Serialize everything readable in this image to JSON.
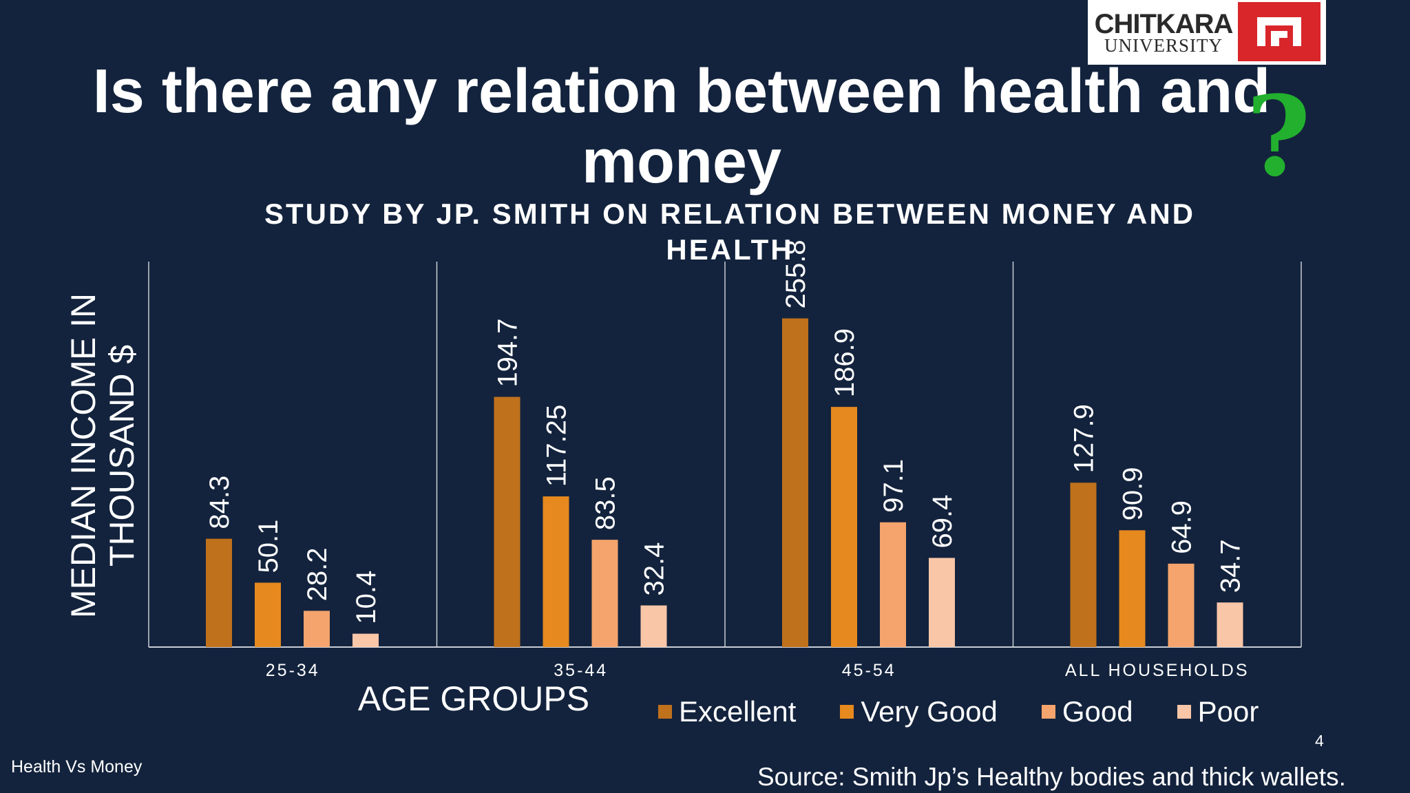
{
  "slide": {
    "title": "Is there any relation between health and money",
    "question_mark": "?",
    "footer": "Health Vs Money",
    "page_number": "4",
    "source": "Source: Smith Jp’s Healthy bodies and thick wallets."
  },
  "logo": {
    "name": "CHITKARA",
    "sub": "UNIVERSITY",
    "icon": "chitkara-logo-icon"
  },
  "chart_data": {
    "type": "bar",
    "title": "STUDY BY JP. SMITH ON RELATION BETWEEN MONEY AND HEALTH",
    "xlabel": "AGE GROUPS",
    "ylabel": "MEDIAN INCOME IN THOUSAND $",
    "ylim": [
      0,
      300
    ],
    "grid": false,
    "legend_position": "bottom",
    "categories": [
      "25-34",
      "35-44",
      "45-54",
      "ALL HOUSEHOLDS"
    ],
    "series": [
      {
        "name": "Excellent",
        "color": "#c0711c",
        "values": [
          84.3,
          194.7,
          255.8,
          127.9
        ],
        "labels": [
          "84.3",
          "194.7",
          "255.8",
          "127.9"
        ]
      },
      {
        "name": "Very Good",
        "color": "#e6891e",
        "values": [
          50.1,
          117.25,
          186.9,
          90.9
        ],
        "labels": [
          "50.1",
          "117.25",
          "186.9",
          "90.9"
        ]
      },
      {
        "name": "Good",
        "color": "#f4a46c",
        "values": [
          28.2,
          83.5,
          97.1,
          64.9
        ],
        "labels": [
          "28.2",
          "83.5",
          "97.1",
          "64.9"
        ]
      },
      {
        "name": "Poor",
        "color": "#f9c6a8",
        "values": [
          10.4,
          32.4,
          69.4,
          34.7
        ],
        "labels": [
          "10.4",
          "32.4",
          "69.4",
          "34.7"
        ]
      }
    ]
  }
}
